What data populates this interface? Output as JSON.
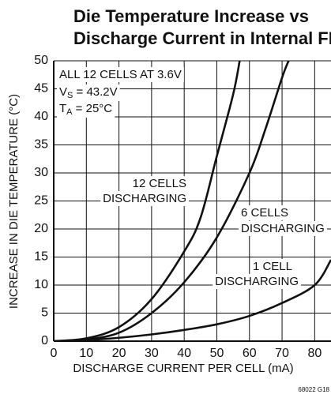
{
  "chart_data": {
    "type": "line",
    "title": [
      "Die Temperature Increase vs",
      "Discharge Current in Internal FET"
    ],
    "x_label": "DISCHARGE CURRENT PER CELL (mA)",
    "y_label": "INCREASE IN DIE TEMPERATURE (°C)",
    "xlim": [
      0,
      85
    ],
    "xticks": [
      0,
      10,
      20,
      30,
      40,
      50,
      60,
      70,
      80
    ],
    "ylim": [
      0,
      50
    ],
    "yticks": [
      0,
      5,
      10,
      15,
      20,
      25,
      30,
      35,
      40,
      45,
      50
    ],
    "grid": true,
    "annotation": {
      "line1": "ALL 12 CELLS AT 3.6V",
      "line2": {
        "main": "V",
        "sub": "S",
        "tail": " = 43.2V"
      },
      "line3": {
        "main": "T",
        "sub": "A",
        "tail": " = 25°C"
      }
    },
    "series": [
      {
        "label": [
          "12 CELLS",
          "DISCHARGING"
        ],
        "color": "#111111",
        "x": [
          0,
          10,
          20,
          30,
          40,
          45,
          50,
          55,
          57
        ],
        "values": [
          0,
          0.5,
          2.5,
          7.5,
          16,
          22,
          33,
          44,
          50
        ]
      },
      {
        "label": [
          "6 CELLS",
          "DISCHARGING"
        ],
        "color": "#111111",
        "x": [
          0,
          10,
          20,
          30,
          40,
          50,
          60,
          65,
          70,
          72
        ],
        "values": [
          0,
          0.3,
          1.5,
          5,
          10.5,
          18.5,
          30,
          38,
          47,
          50
        ]
      },
      {
        "label": [
          "1 CELL",
          "DISCHARGING"
        ],
        "color": "#111111",
        "x": [
          0,
          10,
          20,
          30,
          40,
          50,
          60,
          70,
          80,
          85
        ],
        "values": [
          0,
          0.2,
          0.6,
          1.2,
          2,
          3,
          4.5,
          6.8,
          10,
          14.5
        ]
      }
    ],
    "footnote": "68022 G18"
  }
}
